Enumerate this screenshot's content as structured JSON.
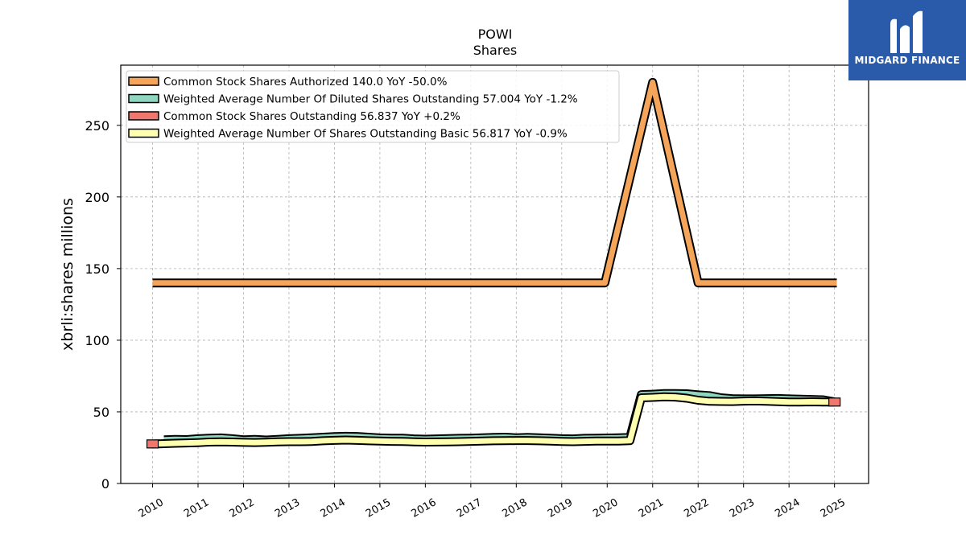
{
  "chart_data": {
    "type": "line",
    "title": "POWI",
    "subtitle": "Shares",
    "xlabel": "",
    "ylabel": "xbrli:shares millions",
    "ylim": [
      0,
      292
    ],
    "xlim": [
      2009.3,
      2025.75
    ],
    "yticks": [
      0,
      50,
      100,
      150,
      200,
      250
    ],
    "xticks": [
      2010,
      2011,
      2012,
      2013,
      2014,
      2015,
      2016,
      2017,
      2018,
      2019,
      2020,
      2021,
      2022,
      2023,
      2024,
      2025
    ],
    "grid": true,
    "legend_position": "top-left",
    "series": [
      {
        "name": "Common Stock Shares Authorized",
        "legend": "Common Stock Shares Authorized  140.0 YoY -50.0%",
        "color": "#f5a55a",
        "x": [
          2010.0,
          2019.95,
          2021.0,
          2022.0,
          2025.05
        ],
        "y": [
          140,
          140,
          280,
          140,
          140
        ]
      },
      {
        "name": "Weighted Average Number Of Diluted Shares Outstanding",
        "legend": "Weighted Average Number Of Diluted Shares Outstanding  57.004 YoY -1.2%",
        "color": "#8fd6c0",
        "x": [
          2010.25,
          2010.5,
          2010.75,
          2011.0,
          2011.25,
          2011.5,
          2011.75,
          2012.0,
          2012.25,
          2012.5,
          2012.75,
          2013.0,
          2013.25,
          2013.5,
          2013.75,
          2014.0,
          2014.25,
          2014.5,
          2014.75,
          2015.0,
          2015.25,
          2015.5,
          2015.75,
          2016.0,
          2016.25,
          2016.5,
          2016.75,
          2017.0,
          2017.25,
          2017.5,
          2017.75,
          2018.0,
          2018.25,
          2018.5,
          2018.75,
          2019.0,
          2019.25,
          2019.5,
          2019.75,
          2020.0,
          2020.25,
          2020.5,
          2020.75,
          2021.0,
          2021.25,
          2021.5,
          2021.75,
          2022.0,
          2022.25,
          2022.5,
          2022.75,
          2023.0,
          2023.25,
          2023.5,
          2023.75,
          2024.0,
          2024.25,
          2024.5,
          2024.75,
          2025.0
        ],
        "y": [
          30.5,
          30.8,
          30.6,
          31.2,
          31.6,
          31.8,
          31.2,
          30.5,
          30.8,
          30.3,
          30.8,
          31.2,
          31.5,
          31.9,
          32.3,
          32.7,
          32.9,
          32.8,
          32.3,
          31.8,
          31.6,
          31.6,
          31.1,
          30.9,
          31.1,
          31.3,
          31.5,
          31.6,
          31.9,
          32.1,
          32.3,
          31.9,
          32.2,
          31.9,
          31.6,
          31.2,
          31.1,
          31.5,
          31.6,
          31.7,
          31.9,
          32.1,
          62.0,
          62.3,
          62.7,
          62.8,
          62.6,
          61.9,
          61.3,
          59.8,
          59.2,
          59.0,
          59.0,
          59.2,
          59.3,
          59.0,
          58.8,
          58.6,
          58.4,
          57.0
        ]
      },
      {
        "name": "Common Stock Shares Outstanding",
        "legend": "Common Stock Shares Outstanding  56.837 YoY +0.2%",
        "color": "#f0776e",
        "x": [
          2010.0,
          2025.0
        ],
        "y": [
          27.6,
          56.837
        ]
      },
      {
        "name": "Weighted Average Number Of Shares Outstanding Basic",
        "legend": "Weighted Average Number Of Shares Outstanding Basic  56.817 YoY -0.9%",
        "color": "#ffffb0",
        "x": [
          2010.0,
          2010.25,
          2010.5,
          2010.75,
          2011.0,
          2011.25,
          2011.5,
          2011.75,
          2012.0,
          2012.25,
          2012.5,
          2012.75,
          2013.0,
          2013.25,
          2013.5,
          2013.75,
          2014.0,
          2014.25,
          2014.5,
          2014.75,
          2015.0,
          2015.25,
          2015.5,
          2015.75,
          2016.0,
          2016.25,
          2016.5,
          2016.75,
          2017.0,
          2017.25,
          2017.5,
          2017.75,
          2018.0,
          2018.25,
          2018.5,
          2018.75,
          2019.0,
          2019.25,
          2019.5,
          2019.75,
          2020.0,
          2020.25,
          2020.5,
          2020.75,
          2021.0,
          2021.25,
          2021.5,
          2021.75,
          2022.0,
          2022.25,
          2022.5,
          2022.75,
          2023.0,
          2023.25,
          2023.5,
          2023.75,
          2024.0,
          2024.25,
          2024.5,
          2024.75,
          2025.0
        ],
        "y": [
          27.5,
          27.8,
          28.1,
          28.3,
          28.5,
          28.9,
          29.1,
          28.9,
          28.7,
          28.6,
          28.8,
          29.1,
          29.2,
          29.2,
          29.3,
          29.8,
          30.1,
          30.3,
          30.1,
          29.8,
          29.6,
          29.4,
          29.3,
          29.1,
          28.9,
          29.0,
          29.1,
          29.2,
          29.4,
          29.6,
          29.8,
          29.9,
          30.0,
          30.0,
          29.8,
          29.6,
          29.3,
          29.2,
          29.4,
          29.6,
          29.6,
          29.6,
          29.9,
          59.8,
          60.1,
          60.5,
          60.3,
          59.5,
          58.1,
          57.4,
          57.3,
          57.2,
          57.5,
          57.6,
          57.4,
          57.1,
          56.9,
          56.8,
          57.0,
          56.9,
          56.8
        ]
      }
    ]
  },
  "logo": {
    "name": "MIDGARD FINANCE"
  }
}
